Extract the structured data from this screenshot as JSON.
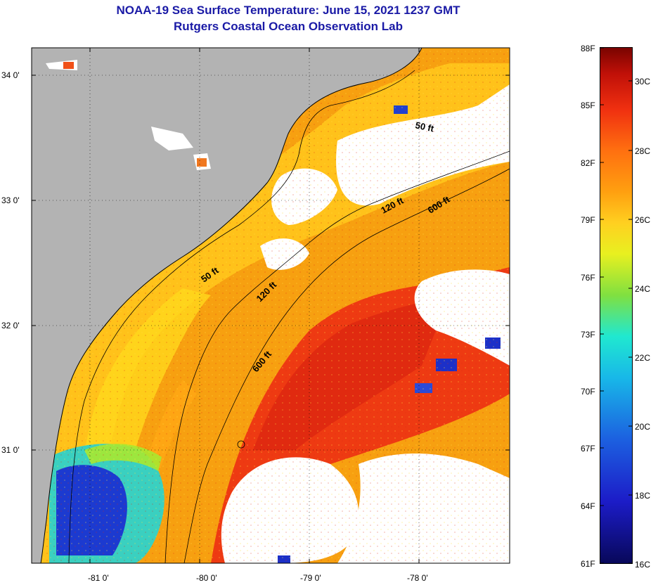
{
  "header": {
    "title": "NOAA-19 Sea Surface Temperature:  June 15, 2021 1237 GMT",
    "subtitle": "Rutgers Coastal Ocean Observation Lab"
  },
  "map": {
    "lon_labels": [
      "-81 0'",
      "-80 0'",
      "-79 0'",
      "-78 0'"
    ],
    "lat_labels": [
      "34 0'",
      "33 0'",
      "32 0'",
      "31 0'"
    ],
    "contour_labels": {
      "c50_north": "50 ft",
      "c50_south": "50 ft",
      "c120_north": "120 ft",
      "c120_south": "120 ft",
      "c600_north": "600 ft",
      "c600_south": "600 ft"
    },
    "colors": {
      "land": "#b3b3b3",
      "cloud": "#ffffff",
      "warm": "#f03010",
      "mid": "#ff9a10",
      "shelf": "#ffd020",
      "cool": "#1a30d0"
    }
  },
  "colorbar": {
    "fahrenheit": [
      "88F",
      "85F",
      "82F",
      "79F",
      "76F",
      "73F",
      "70F",
      "67F",
      "64F",
      "61F"
    ],
    "celsius": [
      "30C",
      "28C",
      "26C",
      "24C",
      "22C",
      "20C",
      "18C",
      "16C"
    ],
    "range_f": [
      61,
      88
    ],
    "range_c": [
      16,
      31.1
    ]
  }
}
